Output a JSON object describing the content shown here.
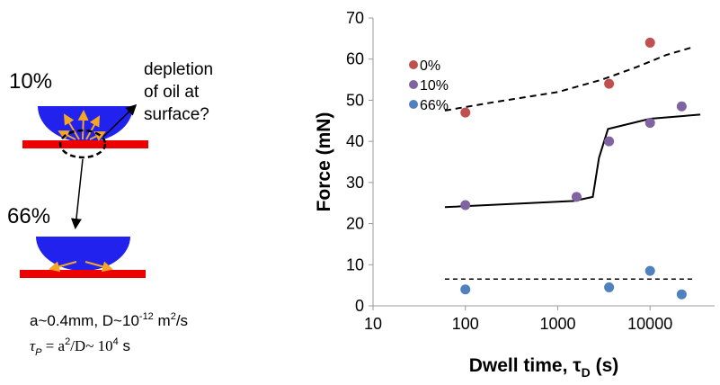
{
  "diagram": {
    "label_top": "10%",
    "note_lines": [
      "depletion",
      "of oil at",
      "surface?"
    ],
    "label_bottom": "66%",
    "params": {
      "a_text": "a~0.4mm, D~10",
      "exp1": "-12",
      "mid": " m",
      "exp2": "2",
      "end": "/s"
    },
    "formula": {
      "lhs": "τ",
      "lhs_sub": "P",
      "eq": " = a",
      "sq": "2",
      "div": "/D~ 10",
      "exp": "4",
      "unit": " s"
    }
  },
  "chart_data": {
    "type": "scatter",
    "y_label": "Force (mN)",
    "x_label": {
      "text": "Dwell time, τ",
      "subscript": "D",
      "suffix": " (s)"
    },
    "xscale": "log",
    "xlim": [
      10,
      50000
    ],
    "xticks": [
      10,
      100,
      1000,
      10000
    ],
    "ylim": [
      0,
      70
    ],
    "yticks": [
      0,
      10,
      20,
      30,
      40,
      50,
      60,
      70
    ],
    "legend": "upper left",
    "series": [
      {
        "name": "0%",
        "color": "#c0504d",
        "x": [
          100,
          3600,
          10000
        ],
        "values": [
          47,
          54,
          64
        ]
      },
      {
        "name": "10%",
        "color": "#8064a2",
        "x": [
          100,
          1600,
          3600,
          10000,
          22000
        ],
        "values": [
          24.5,
          26.5,
          40,
          44.5,
          48.5
        ]
      },
      {
        "name": "66%",
        "color": "#4f81bd",
        "x": [
          100,
          3600,
          10000,
          22000
        ],
        "values": [
          4,
          4.5,
          8.5,
          2.8
        ]
      }
    ],
    "fits": [
      {
        "dash": "7,5",
        "width": 2,
        "x": [
          60,
          200,
          1000,
          3000,
          7000,
          15000,
          30000
        ],
        "values": [
          47.5,
          49.5,
          52,
          55,
          58,
          61,
          63
        ]
      },
      {
        "dash": "none",
        "width": 2,
        "x": [
          60,
          500,
          1500,
          2400,
          2800,
          3500,
          10000,
          35000
        ],
        "values": [
          24,
          25,
          25.5,
          26.5,
          36,
          43,
          45.5,
          46.5
        ]
      },
      {
        "dash": "5,4",
        "width": 1.5,
        "x": [
          60,
          30000
        ],
        "values": [
          6.5,
          6.5
        ]
      }
    ]
  }
}
